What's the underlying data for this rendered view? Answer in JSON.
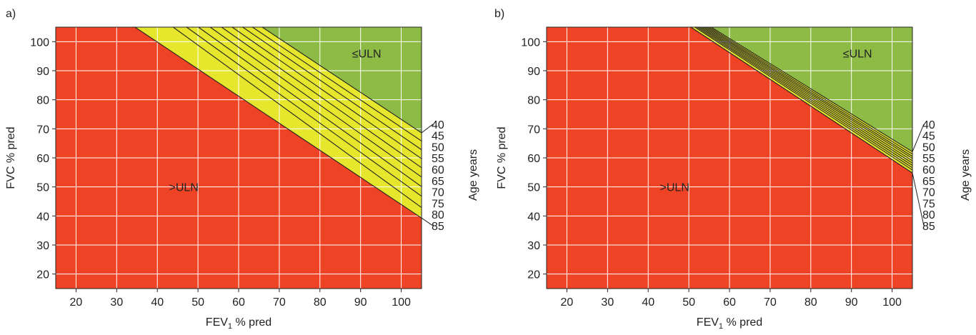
{
  "colors": {
    "above": "#ef4326",
    "below": "#8dbb45",
    "band": "#e6e62d",
    "grid": "#ffffff",
    "line": "#222222"
  },
  "chart_data": [
    {
      "type": "area",
      "panel_label": "a)",
      "xlabel_main": "FEV",
      "xlabel_sub": "1",
      "xlabel_rest": " % pred",
      "ylabel": "FVC % pred",
      "xlim": [
        15,
        105
      ],
      "ylim": [
        15,
        105
      ],
      "xticks": [
        20,
        30,
        40,
        50,
        60,
        70,
        80,
        90,
        100
      ],
      "yticks": [
        20,
        30,
        40,
        50,
        60,
        70,
        80,
        90,
        100
      ],
      "grid": true,
      "region_labels": {
        "above": ">ULN",
        "below": "≤ULN"
      },
      "age_axis_label": "Age years",
      "ages": [
        "40",
        "45",
        "50",
        "55",
        "60",
        "65",
        "70",
        "75",
        "80",
        "85"
      ],
      "ratio_lines": [
        {
          "age": "40",
          "points": [
            [
              65.8,
              105
            ],
            [
              105,
              68.6
            ]
          ]
        },
        {
          "age": "45",
          "points": [
            [
              63.4,
              105
            ],
            [
              105,
              65.8
            ]
          ]
        },
        {
          "age": "50",
          "points": [
            [
              61.0,
              105
            ],
            [
              105,
              62.8
            ]
          ]
        },
        {
          "age": "55",
          "points": [
            [
              58.4,
              105
            ],
            [
              105,
              59.7
            ]
          ]
        },
        {
          "age": "60",
          "points": [
            [
              55.8,
              105
            ],
            [
              105,
              56.6
            ]
          ]
        },
        {
          "age": "65",
          "points": [
            [
              53.0,
              105
            ],
            [
              105,
              53.4
            ]
          ]
        },
        {
          "age": "70",
          "points": [
            [
              50.1,
              105
            ],
            [
              105,
              50.1
            ]
          ]
        },
        {
          "age": "75",
          "points": [
            [
              47.2,
              105
            ],
            [
              105,
              46.8
            ]
          ]
        },
        {
          "age": "80",
          "points": [
            [
              43.9,
              105
            ],
            [
              105,
              42.9
            ]
          ]
        },
        {
          "age": "85",
          "points": [
            [
              34.5,
              105
            ],
            [
              105,
              39.3
            ]
          ]
        }
      ]
    },
    {
      "type": "area",
      "panel_label": "b)",
      "xlabel_main": "FEV",
      "xlabel_sub": "1",
      "xlabel_rest": " % pred",
      "ylabel": "FVC % pred",
      "xlim": [
        15,
        105
      ],
      "ylim": [
        15,
        105
      ],
      "xticks": [
        20,
        30,
        40,
        50,
        60,
        70,
        80,
        90,
        100
      ],
      "yticks": [
        20,
        30,
        40,
        50,
        60,
        70,
        80,
        90,
        100
      ],
      "grid": true,
      "region_labels": {
        "above": ">ULN",
        "below": "≤ULN"
      },
      "age_axis_label": "Age  years",
      "ages": [
        "40",
        "45",
        "50",
        "55",
        "60",
        "65",
        "70",
        "75",
        "80",
        "85"
      ],
      "ratio_lines": [
        {
          "age": "40",
          "points": [
            [
              55.5,
              105
            ],
            [
              105,
              62.1
            ]
          ]
        },
        {
          "age": "45",
          "points": [
            [
              55.0,
              105
            ],
            [
              105,
              61.3
            ]
          ]
        },
        {
          "age": "50",
          "points": [
            [
              54.5,
              105
            ],
            [
              105,
              60.5
            ]
          ]
        },
        {
          "age": "55",
          "points": [
            [
              54.0,
              105
            ],
            [
              105,
              59.8
            ]
          ]
        },
        {
          "age": "60",
          "points": [
            [
              53.5,
              105
            ],
            [
              105,
              59.0
            ]
          ]
        },
        {
          "age": "65",
          "points": [
            [
              53.0,
              105
            ],
            [
              105,
              58.2
            ]
          ]
        },
        {
          "age": "70",
          "points": [
            [
              52.5,
              105
            ],
            [
              105,
              57.4
            ]
          ]
        },
        {
          "age": "75",
          "points": [
            [
              52.0,
              105
            ],
            [
              105,
              56.6
            ]
          ]
        },
        {
          "age": "80",
          "points": [
            [
              51.5,
              105
            ],
            [
              105,
              55.8
            ]
          ]
        },
        {
          "age": "85",
          "points": [
            [
              50.5,
              105
            ],
            [
              105,
              54.8
            ]
          ]
        }
      ]
    }
  ]
}
